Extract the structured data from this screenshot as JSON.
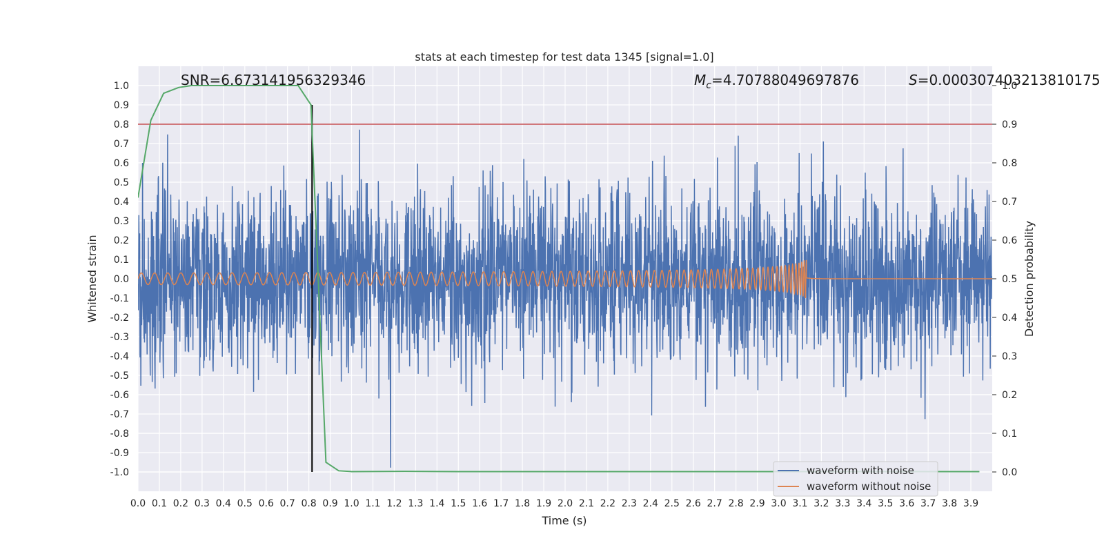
{
  "chart_data": {
    "type": "line",
    "title": "stats at each timestep for test data 1345 [signal=1.0]",
    "xlabel": "Time (s)",
    "ylabel_left": "Whitened strain",
    "ylabel_right": "Detection probability",
    "xlim": [
      0.0,
      4.0
    ],
    "ylim_left": [
      -1.1,
      1.1
    ],
    "ylim_right": [
      -0.05,
      1.05
    ],
    "x_ticks": [
      "0.0",
      "0.1",
      "0.2",
      "0.3",
      "0.4",
      "0.5",
      "0.6",
      "0.7",
      "0.8",
      "0.9",
      "1.0",
      "1.1",
      "1.2",
      "1.3",
      "1.4",
      "1.5",
      "1.6",
      "1.7",
      "1.8",
      "1.9",
      "2.0",
      "2.1",
      "2.2",
      "2.3",
      "2.4",
      "2.5",
      "2.6",
      "2.7",
      "2.8",
      "2.9",
      "3.0",
      "3.1",
      "3.2",
      "3.3",
      "3.4",
      "3.5",
      "3.6",
      "3.7",
      "3.8",
      "3.9"
    ],
    "y_ticks_left": [
      "-1.0",
      "-0.9",
      "-0.8",
      "-0.7",
      "-0.6",
      "-0.5",
      "-0.4",
      "-0.3",
      "-0.2",
      "-0.1",
      "0.0",
      "0.1",
      "0.2",
      "0.3",
      "0.4",
      "0.5",
      "0.6",
      "0.7",
      "0.8",
      "0.9",
      "1.0"
    ],
    "y_ticks_right": [
      "0.0",
      "0.1",
      "0.2",
      "0.3",
      "0.4",
      "0.5",
      "0.6",
      "0.7",
      "0.8",
      "0.9",
      "1.0"
    ],
    "annotations": {
      "snr": "SNR=6.673141956329346",
      "mc_label": "M",
      "mc_sub": "c",
      "mc_value": "=4.70788049697876",
      "s_label": "S",
      "s_value": "=0.000307403213810175"
    },
    "series": [
      {
        "name": "waveform with noise",
        "color": "#4c72b0",
        "axis": "left",
        "kind": "noise",
        "typical_amplitude": 0.3,
        "peak_amplitude": 1.0
      },
      {
        "name": "waveform without noise",
        "color": "#dd8452",
        "axis": "left",
        "kind": "chirp",
        "start_amplitude": 0.03,
        "end_amplitude": 0.2,
        "merger_time": 3.13
      },
      {
        "name": "detection probability",
        "color": "#55a868",
        "axis": "right",
        "x": [
          0.0,
          0.06,
          0.12,
          0.19,
          0.25,
          0.31,
          0.38,
          0.44,
          0.5,
          0.56,
          0.62,
          0.69,
          0.75,
          0.81,
          0.88,
          0.94,
          1.0,
          1.25,
          1.5,
          2.0,
          2.5,
          3.0,
          3.5,
          3.94
        ],
        "y": [
          0.71,
          0.91,
          0.98,
          0.995,
          1.0,
          1.0,
          1.0,
          1.0,
          1.0,
          1.0,
          1.0,
          1.0,
          1.0,
          0.95,
          0.025,
          0.003,
          0.001,
          0.0015,
          0.001,
          0.001,
          0.001,
          0.001,
          0.001,
          0.001
        ]
      }
    ],
    "threshold_line": {
      "axis": "right",
      "value": 0.9,
      "color": "#c44e52"
    },
    "detection_time_marker": {
      "x": 0.815,
      "color": "#000000"
    },
    "legend": {
      "placement": "bottom-right",
      "entries": [
        "waveform with noise",
        "waveform without noise"
      ]
    }
  }
}
